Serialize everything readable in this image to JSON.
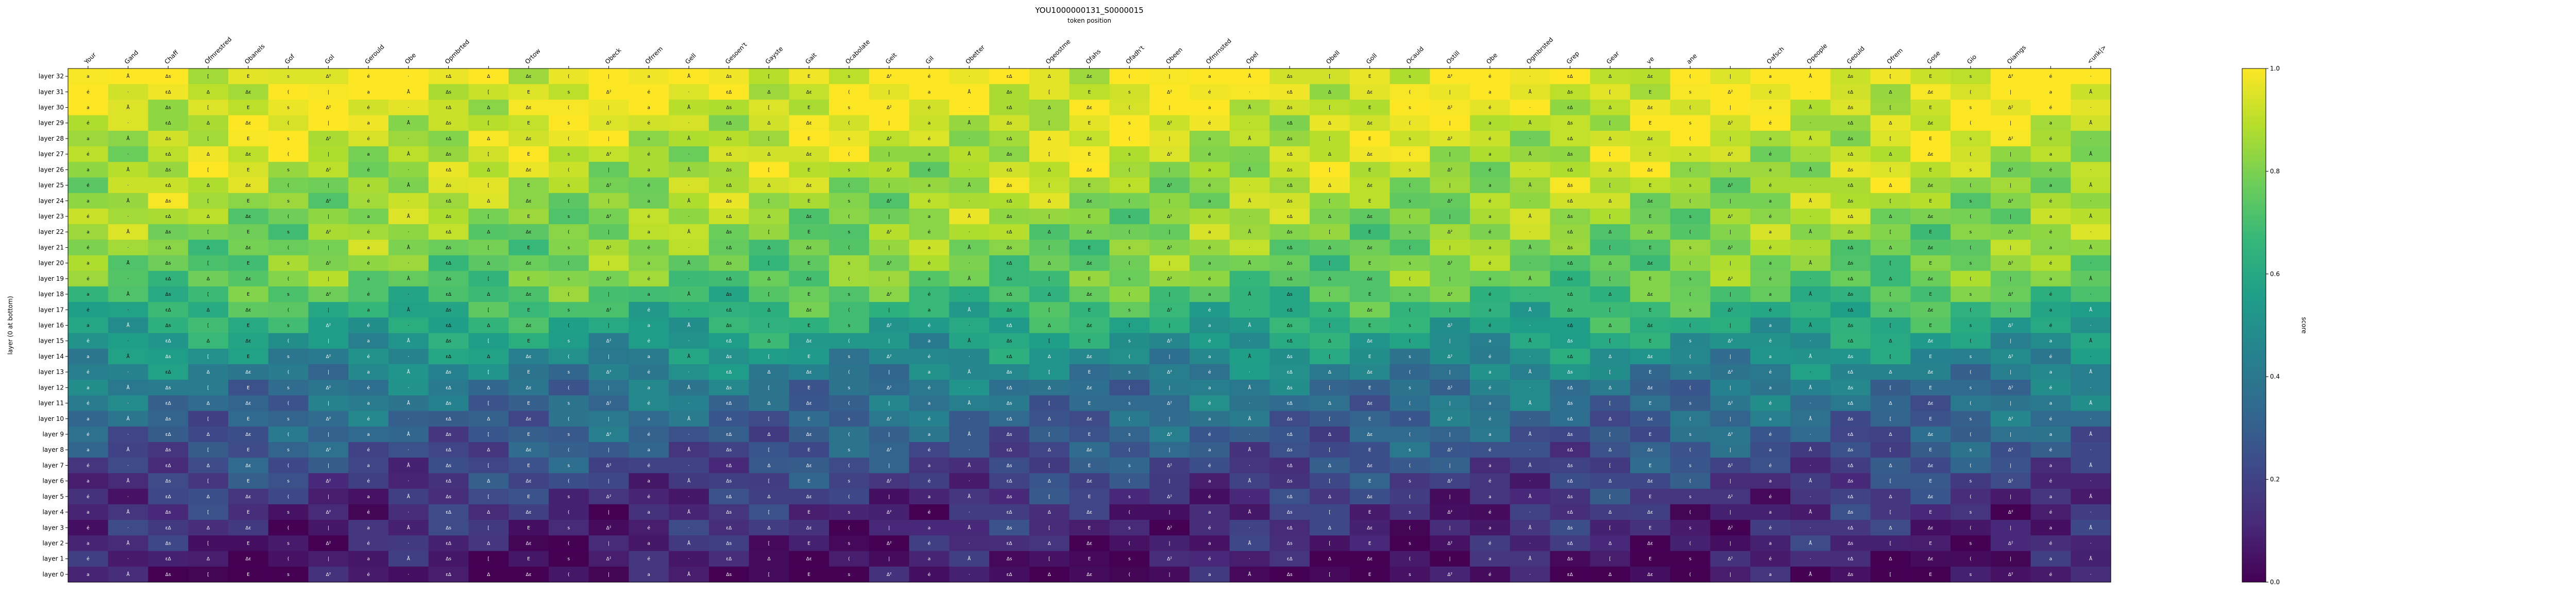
{
  "chart_data": {
    "type": "heatmap",
    "title": "YOU1000000131_S0000015",
    "xlabel": "token position",
    "ylabel": "layer (0 at bottom)",
    "colorbar_label": "score",
    "colormap": "viridis",
    "vmin": 0.0,
    "vmax": 1.0,
    "colorbar_ticks": [
      "0.0",
      "0.2",
      "0.4",
      "0.6",
      "0.8",
      "1.0"
    ],
    "x_tokens": [
      "Your",
      "Gand",
      "Chaff",
      "Ofmrestred",
      "Obanels",
      "Gof",
      "Gol",
      "Gerould",
      "Obe",
      "Opmbrted",
      "",
      "Ortow",
      "",
      "Obeck",
      "Ofrrem",
      "Gell",
      "Gesoen't",
      "Gayste",
      "Gait",
      "Ocabolate",
      "Geit",
      "Gil",
      "Obetter",
      "",
      "Ogeostme",
      "Ofahs",
      "Ofadh't",
      "Obeen",
      "Ofmrnsted",
      "Opel",
      "",
      "Obell",
      "Goll",
      "Ocauld",
      "Ostill",
      "Obe",
      "Ogmbrsted",
      "Grep",
      "Gear",
      "ve",
      "ane",
      "",
      "Oafsch",
      "Opeople",
      "Geould",
      "Ofrem",
      "Gose",
      "Gio",
      "Oiamgs",
      "",
      "<unk|>"
    ],
    "y_labels": [
      "layer 32",
      "layer 31",
      "layer 30",
      "layer 29",
      "layer 28",
      "layer 27",
      "layer 26",
      "layer 25",
      "layer 24",
      "layer 23",
      "layer 22",
      "layer 21",
      "layer 20",
      "layer 19",
      "layer 18",
      "layer 17",
      "layer 16",
      "layer 15",
      "layer 14",
      "layer 13",
      "layer 12",
      "layer 11",
      "layer 10",
      "layer 9",
      "layer 8",
      "layer 7",
      "layer 6",
      "layer 5",
      "layer 4",
      "layer 3",
      "layer 2",
      "layer 1",
      "layer 0"
    ],
    "grid": false,
    "legend": "colorbar at right",
    "values": [],
    "cell_labels": []
  },
  "colors": {
    "viridis_stops": [
      "#440154",
      "#482878",
      "#3e4989",
      "#31688e",
      "#26828e",
      "#1f9e89",
      "#35b779",
      "#6ece58",
      "#b5de2b",
      "#fde725"
    ]
  }
}
